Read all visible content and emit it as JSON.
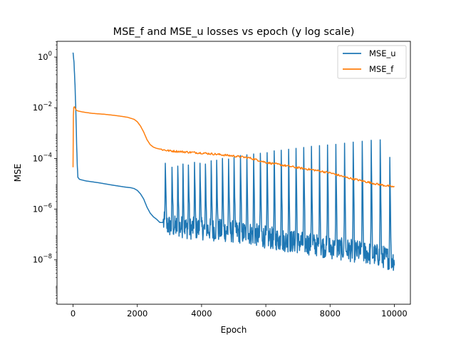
{
  "chart_data": {
    "type": "line",
    "title": "MSE_f and MSE_u losses vs epoch (y log scale)",
    "xlabel": "Epoch",
    "ylabel": "MSE",
    "xlim": [
      -500,
      10500
    ],
    "ylim_log10": [
      -9.75,
      0.62
    ],
    "yscale": "log",
    "grid": false,
    "legend_position": "top-right",
    "x_ticks": [
      {
        "value": 0,
        "label": "0"
      },
      {
        "value": 2000,
        "label": "2000"
      },
      {
        "value": 4000,
        "label": "4000"
      },
      {
        "value": 6000,
        "label": "6000"
      },
      {
        "value": 8000,
        "label": "8000"
      },
      {
        "value": 10000,
        "label": "10000"
      }
    ],
    "y_ticks": [
      {
        "exp": 0,
        "base": "10",
        "sup": "0"
      },
      {
        "exp": -2,
        "base": "10",
        "sup": "−2"
      },
      {
        "exp": -4,
        "base": "10",
        "sup": "−4"
      },
      {
        "exp": -6,
        "base": "10",
        "sup": "−6"
      },
      {
        "exp": -8,
        "base": "10",
        "sup": "−8"
      }
    ],
    "series": [
      {
        "name": "MSE_u",
        "color": "#1f77b4",
        "x": [
          0,
          30,
          60,
          90,
          110,
          130,
          150,
          200,
          400,
          800,
          1200,
          1600,
          1800,
          1900,
          2000,
          2100,
          2200,
          2300,
          2400,
          2500,
          2600,
          2700,
          2800,
          2900,
          3000,
          3200,
          3400,
          3600,
          4000,
          4500,
          5000,
          5500,
          6000,
          6500,
          7000,
          7500,
          8000,
          8500,
          9000,
          9500,
          10000
        ],
        "y": [
          1.5,
          0.6,
          0.08,
          0.005,
          0.0004,
          6e-05,
          1.8e-05,
          1.5e-05,
          1.3e-05,
          1.1e-05,
          9e-06,
          7.5e-06,
          7e-06,
          6.5e-06,
          5.5e-06,
          4e-06,
          2.5e-06,
          1.2e-06,
          7e-07,
          5e-07,
          4e-07,
          3e-07,
          3e-07,
          2.5e-07,
          2.2e-07,
          2e-07,
          2e-07,
          1.8e-07,
          1.7e-07,
          1.5e-07,
          1.3e-07,
          1.1e-07,
          8e-08,
          6e-08,
          5e-08,
          4e-08,
          3e-08,
          2.5e-08,
          2e-08,
          1.5e-08,
          1e-08
        ],
        "spike_epochs": [
          2870,
          3080,
          3260,
          3420,
          3590,
          3780,
          3950,
          4120,
          4300,
          4470,
          4650,
          4840,
          5010,
          5210,
          5410,
          5620,
          5830,
          6040,
          6260,
          6480,
          6710,
          6940,
          7180,
          7420,
          7670,
          7920,
          8180,
          8450,
          8720,
          9000,
          9280,
          9560,
          9860
        ],
        "spike_peaks": [
          6.5e-05,
          4.5e-05,
          5e-05,
          6e-05,
          5.5e-05,
          7e-05,
          6.5e-05,
          6e-05,
          8e-05,
          8.5e-05,
          0.0001,
          9.5e-05,
          0.00011,
          0.00013,
          0.00014,
          0.00015,
          0.00016,
          0.00017,
          0.0002,
          0.00021,
          0.00023,
          0.00025,
          0.00027,
          0.0003,
          0.00032,
          0.00034,
          0.00036,
          0.0004,
          0.00044,
          0.00048,
          0.00052,
          0.00054,
          0.00011
        ]
      },
      {
        "name": "MSE_f",
        "color": "#ff7f0e",
        "x": [
          0,
          10,
          20,
          40,
          60,
          80,
          100,
          150,
          300,
          600,
          1000,
          1400,
          1700,
          1900,
          2000,
          2100,
          2200,
          2300,
          2400,
          2500,
          2600,
          2800,
          3000,
          3500,
          4000,
          4500,
          5000,
          5500,
          6000,
          6500,
          7000,
          7500,
          8000,
          8500,
          9000,
          9500,
          10000
        ],
        "y": [
          4.5e-05,
          0.005,
          0.01,
          0.011,
          0.01,
          0.009,
          0.008,
          0.0075,
          0.0068,
          0.006,
          0.0055,
          0.0048,
          0.0042,
          0.0035,
          0.0028,
          0.0019,
          0.0011,
          0.00055,
          0.00035,
          0.00028,
          0.00025,
          0.00022,
          0.0002,
          0.00018,
          0.000165,
          0.000145,
          0.000125,
          0.000105,
          7e-05,
          5.5e-05,
          4.3e-05,
          3.5e-05,
          2.7e-05,
          1.8e-05,
          1.3e-05,
          9.5e-06,
          7.5e-06
        ]
      }
    ]
  }
}
